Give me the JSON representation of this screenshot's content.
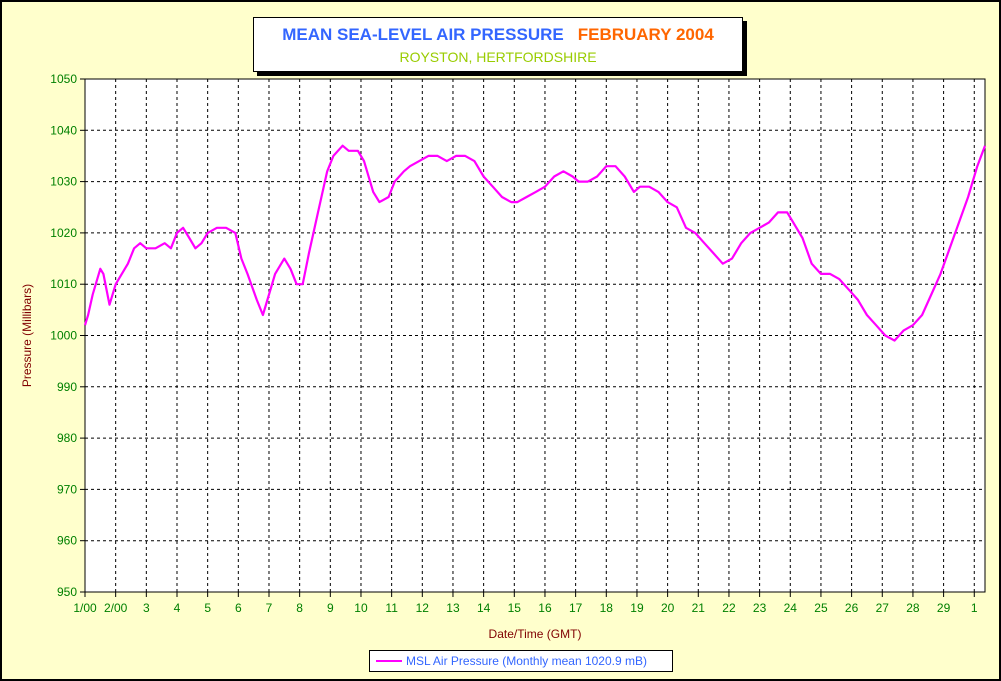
{
  "title": {
    "main": "MEAN SEA-LEVEL AIR PRESSURE",
    "month": "FEBRUARY 2004",
    "subtitle": "ROYSTON, HERTFORDSHIRE"
  },
  "colors": {
    "background": "#ffffcc",
    "frame": "#ffff99",
    "series": "#ff00ff",
    "ticks": "#008000",
    "axis_titles": "#800000",
    "title_main": "#3366ff",
    "title_month": "#ff6600",
    "subtitle": "#99cc00"
  },
  "chart_data": {
    "type": "line",
    "xlabel": "Date/Time (GMT)",
    "ylabel": "Pressure (Millibars)",
    "ylim": [
      950,
      1050
    ],
    "yticks": [
      950,
      960,
      970,
      980,
      990,
      1000,
      1010,
      1020,
      1030,
      1040,
      1050
    ],
    "xlim": [
      1,
      30.35
    ],
    "xticks": [
      {
        "x": 1,
        "label": "1/00"
      },
      {
        "x": 2,
        "label": "2/00"
      },
      {
        "x": 3,
        "label": "3"
      },
      {
        "x": 4,
        "label": "4"
      },
      {
        "x": 5,
        "label": "5"
      },
      {
        "x": 6,
        "label": "6"
      },
      {
        "x": 7,
        "label": "7"
      },
      {
        "x": 8,
        "label": "8"
      },
      {
        "x": 9,
        "label": "9"
      },
      {
        "x": 10,
        "label": "10"
      },
      {
        "x": 11,
        "label": "11"
      },
      {
        "x": 12,
        "label": "12"
      },
      {
        "x": 13,
        "label": "13"
      },
      {
        "x": 14,
        "label": "14"
      },
      {
        "x": 15,
        "label": "15"
      },
      {
        "x": 16,
        "label": "16"
      },
      {
        "x": 17,
        "label": "17"
      },
      {
        "x": 18,
        "label": "18"
      },
      {
        "x": 19,
        "label": "19"
      },
      {
        "x": 20,
        "label": "20"
      },
      {
        "x": 21,
        "label": "21"
      },
      {
        "x": 22,
        "label": "22"
      },
      {
        "x": 23,
        "label": "23"
      },
      {
        "x": 24,
        "label": "24"
      },
      {
        "x": 25,
        "label": "25"
      },
      {
        "x": 26,
        "label": "26"
      },
      {
        "x": 27,
        "label": "27"
      },
      {
        "x": 28,
        "label": "28"
      },
      {
        "x": 29,
        "label": "29"
      },
      {
        "x": 30,
        "label": "1"
      }
    ],
    "grid": true,
    "legend_position": "bottom-center",
    "series": [
      {
        "name": "MSL Air Pressure (Monthly mean 1020.9 mB)",
        "x": [
          1.0,
          1.1,
          1.25,
          1.5,
          1.6,
          1.8,
          2.0,
          2.2,
          2.4,
          2.6,
          2.8,
          3.0,
          3.3,
          3.6,
          3.8,
          4.0,
          4.2,
          4.4,
          4.6,
          4.8,
          5.0,
          5.3,
          5.6,
          5.9,
          6.1,
          6.3,
          6.6,
          6.8,
          7.0,
          7.2,
          7.5,
          7.7,
          7.9,
          8.1,
          8.3,
          8.6,
          8.9,
          9.1,
          9.4,
          9.6,
          9.9,
          10.1,
          10.4,
          10.6,
          10.9,
          11.1,
          11.4,
          11.6,
          11.9,
          12.2,
          12.5,
          12.8,
          13.1,
          13.4,
          13.7,
          14.0,
          14.3,
          14.6,
          14.9,
          15.1,
          15.4,
          15.7,
          16.0,
          16.3,
          16.6,
          16.9,
          17.1,
          17.4,
          17.7,
          18.0,
          18.3,
          18.6,
          18.9,
          19.1,
          19.4,
          19.7,
          20.0,
          20.3,
          20.6,
          20.9,
          21.2,
          21.5,
          21.8,
          22.1,
          22.4,
          22.7,
          23.0,
          23.3,
          23.6,
          23.9,
          24.1,
          24.4,
          24.7,
          25.0,
          25.3,
          25.6,
          25.9,
          26.2,
          26.5,
          26.8,
          27.1,
          27.4,
          27.7,
          28.0,
          28.3,
          28.6,
          28.9,
          29.2,
          29.5,
          29.8,
          30.1,
          30.35
        ],
        "values": [
          1002,
          1004,
          1008,
          1013,
          1012,
          1006,
          1010,
          1012,
          1014,
          1017,
          1018,
          1017,
          1017,
          1018,
          1017,
          1020,
          1021,
          1019,
          1017,
          1018,
          1020,
          1021,
          1021,
          1020,
          1015,
          1012,
          1007,
          1004,
          1008,
          1012,
          1015,
          1013,
          1010,
          1010,
          1016,
          1024,
          1032,
          1035,
          1037,
          1036,
          1036,
          1034,
          1028,
          1026,
          1027,
          1030,
          1032,
          1033,
          1034,
          1035,
          1035,
          1034,
          1035,
          1035,
          1034,
          1031,
          1029,
          1027,
          1026,
          1026,
          1027,
          1028,
          1029,
          1031,
          1032,
          1031,
          1030,
          1030,
          1031,
          1033,
          1033,
          1031,
          1028,
          1029,
          1029,
          1028,
          1026,
          1025,
          1021,
          1020,
          1018,
          1016,
          1014,
          1015,
          1018,
          1020,
          1021,
          1022,
          1024,
          1024,
          1022,
          1019,
          1014,
          1012,
          1012,
          1011,
          1009,
          1007,
          1004,
          1002,
          1000,
          999,
          1001,
          1002,
          1004,
          1008,
          1012,
          1017,
          1022,
          1027,
          1033,
          1037
        ]
      }
    ]
  }
}
